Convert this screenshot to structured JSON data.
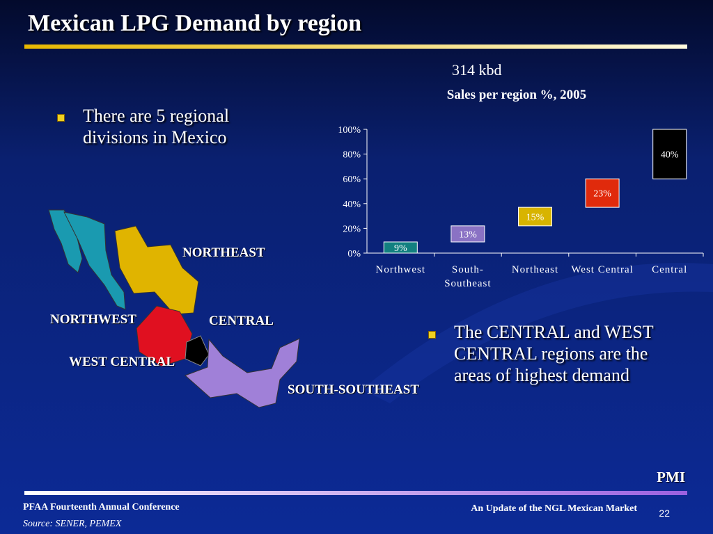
{
  "header": {
    "title": "Mexican LPG Demand by region"
  },
  "bullets": [
    "There are 5 regional divisions in Mexico",
    "The CENTRAL  and WEST CENTRAL regions are the areas of highest demand"
  ],
  "map": {
    "labels": [
      "NORTHEAST",
      "NORTHWEST",
      "CENTRAL",
      "WEST CENTRAL",
      "SOUTH-SOUTHEAST"
    ]
  },
  "chart_data": {
    "type": "waterfall",
    "annotation": "314 kbd",
    "title": "Sales per region %, 2005",
    "categories": [
      "Northwest",
      "South-Southeast",
      "Northeast",
      "West Central",
      "Central"
    ],
    "values": [
      9,
      13,
      15,
      23,
      40
    ],
    "value_labels": [
      "9%",
      "13%",
      "15%",
      "23%",
      "40%"
    ],
    "colors": [
      "#128080",
      "#8a72c4",
      "#d8b400",
      "#e02a0c",
      "#000000"
    ],
    "ylim": [
      0,
      100
    ],
    "yticks": [
      {
        "value": 0,
        "label": "0%"
      },
      {
        "value": 20,
        "label": "20%"
      },
      {
        "value": 40,
        "label": "40%"
      },
      {
        "value": 60,
        "label": "60%"
      },
      {
        "value": 80,
        "label": "80%"
      },
      {
        "value": 100,
        "label": "100%"
      }
    ]
  },
  "footer": {
    "brand": "PMI",
    "conference": "PFAA Fourteenth Annual Conference",
    "source": "Source: SENER, PEMEX",
    "subtitle": "An Update of the NGL Mexican Market",
    "page": 22
  }
}
